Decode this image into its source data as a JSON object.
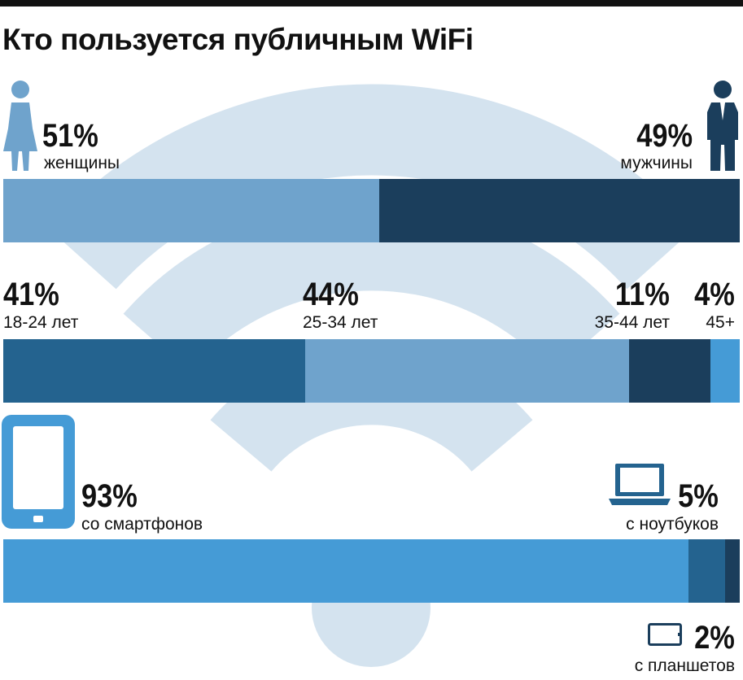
{
  "title": "Кто пользуется публичным WiFi",
  "colors": {
    "light_blue": "#6fa3cc",
    "dark_navy": "#1b3e5c",
    "mid_blue": "#24638f",
    "bright_blue": "#459bd6",
    "wifi_watermark": "#d4e3ef"
  },
  "icons": [
    "woman-icon",
    "man-icon",
    "smartphone-icon",
    "laptop-icon",
    "tablet-icon",
    "wifi-watermark-icon"
  ],
  "chart_data": [
    {
      "type": "bar",
      "stacked": true,
      "orientation": "horizontal",
      "series": [
        {
          "name": "женщины",
          "value": 51,
          "label": "51%",
          "color": "#6fa3cc"
        },
        {
          "name": "мужчины",
          "value": 49,
          "label": "49%",
          "color": "#1b3e5c"
        }
      ]
    },
    {
      "type": "bar",
      "stacked": true,
      "orientation": "horizontal",
      "series": [
        {
          "name": "18-24 лет",
          "value": 41,
          "label": "41%",
          "color": "#24638f"
        },
        {
          "name": "25-34 лет",
          "value": 44,
          "label": "44%",
          "color": "#6fa3cc"
        },
        {
          "name": "35-44 лет",
          "value": 11,
          "label": "11%",
          "color": "#1b3e5c"
        },
        {
          "name": "45+",
          "value": 4,
          "label": "4%",
          "color": "#459bd6"
        }
      ]
    },
    {
      "type": "bar",
      "stacked": true,
      "orientation": "horizontal",
      "series": [
        {
          "name": "со смартфонов",
          "value": 93,
          "label": "93%",
          "color": "#459bd6"
        },
        {
          "name": "с ноутбуков",
          "value": 5,
          "label": "5%",
          "color": "#24638f"
        },
        {
          "name": "с планшетов",
          "value": 2,
          "label": "2%",
          "color": "#1b3e5c"
        }
      ]
    }
  ]
}
